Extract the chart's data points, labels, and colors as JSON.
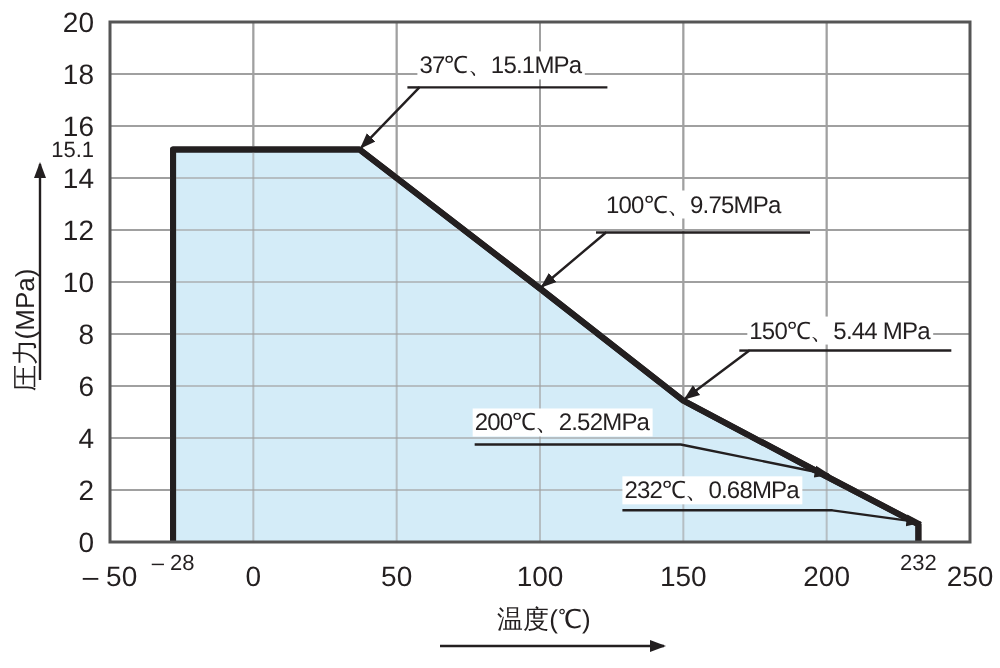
{
  "chart_data": {
    "type": "area",
    "x": [
      -28,
      -28,
      37,
      100,
      150,
      200,
      232,
      232
    ],
    "values": [
      0,
      15.1,
      15.1,
      9.75,
      5.44,
      2.52,
      0.68,
      0
    ],
    "color": "#d4ecf8",
    "xlim": [
      -50,
      250
    ],
    "ylim": [
      0,
      20
    ],
    "xticks": [
      {
        "value": -50,
        "label": "– 50"
      },
      {
        "value": -28,
        "label": "– 28"
      },
      0,
      50,
      100,
      150,
      200,
      {
        "value": 232,
        "label": "232"
      },
      250
    ],
    "yticks": [
      0,
      2,
      4,
      6,
      8,
      10,
      12,
      14,
      15.1,
      16,
      18,
      20
    ],
    "grid": true,
    "xlabel": "温度(℃)",
    "ylabel": "圧力(MPa)",
    "annotations": [
      {
        "text": "37℃、15.1MPa",
        "x": 37,
        "y": 15.1
      },
      {
        "text": "100℃、9.75MPa",
        "x": 100,
        "y": 9.75
      },
      {
        "text": "150℃、5.44 MPa",
        "x": 150,
        "y": 5.44
      },
      {
        "text": "200℃、2.52MPa",
        "x": 200,
        "y": 2.52
      },
      {
        "text": "232℃、0.68MPa",
        "x": 232,
        "y": 0.68
      }
    ]
  }
}
